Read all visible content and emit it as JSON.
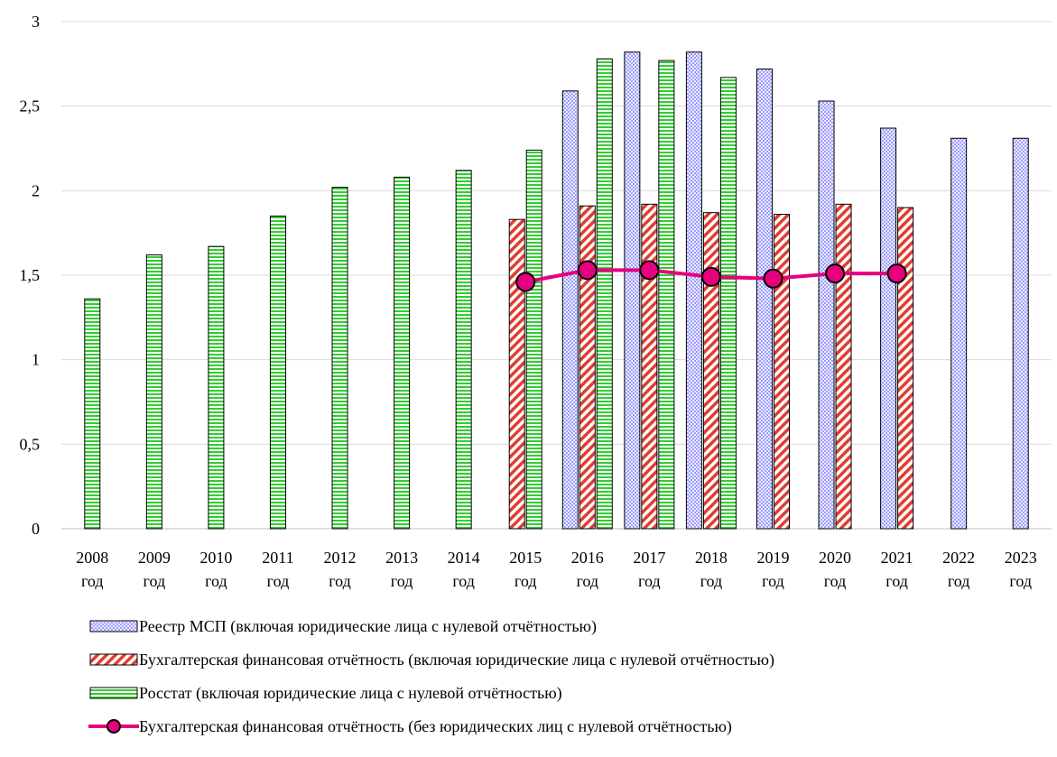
{
  "chart_data": {
    "type": "bar",
    "categories": [
      [
        "2008",
        "год"
      ],
      [
        "2009",
        "год"
      ],
      [
        "2010",
        "год"
      ],
      [
        "2011",
        "год"
      ],
      [
        "2012",
        "год"
      ],
      [
        "2013",
        "год"
      ],
      [
        "2014",
        "год"
      ],
      [
        "2015",
        "год"
      ],
      [
        "2016",
        "год"
      ],
      [
        "2017",
        "год"
      ],
      [
        "2018",
        "год"
      ],
      [
        "2019",
        "год"
      ],
      [
        "2020",
        "год"
      ],
      [
        "2021",
        "год"
      ],
      [
        "2022",
        "год"
      ],
      [
        "2023",
        "год"
      ]
    ],
    "y_ticks": [
      "0",
      "0,5",
      "1",
      "1,5",
      "2",
      "2,5",
      "3"
    ],
    "ylim": [
      0,
      3
    ],
    "grid": true,
    "legend_position": "bottom",
    "series": [
      {
        "name": "Реестр МСП (включая юридические лица с нулевой отчётностью)",
        "kind": "bar",
        "pattern": "crosshatch",
        "color": "#7f7fff",
        "values": [
          null,
          null,
          null,
          null,
          null,
          null,
          null,
          null,
          2.59,
          2.82,
          2.82,
          2.72,
          2.53,
          2.37,
          2.31,
          2.31
        ]
      },
      {
        "name": "Бухгалтерская финансовая отчётность (включая юридические лица с нулевой отчётностью)",
        "kind": "bar",
        "pattern": "diagonal-stripes",
        "color": "#e03c31",
        "values": [
          null,
          null,
          null,
          null,
          null,
          null,
          null,
          1.83,
          1.91,
          1.92,
          1.87,
          1.86,
          1.92,
          1.9,
          null,
          null
        ]
      },
      {
        "name": "Росстат (включая юридические лица с нулевой отчётностью)",
        "kind": "bar",
        "pattern": "horizontal-stripes",
        "color": "#32cd32",
        "values": [
          1.36,
          1.62,
          1.67,
          1.85,
          2.02,
          2.08,
          2.12,
          2.24,
          2.78,
          2.77,
          2.67,
          null,
          null,
          null,
          null,
          null
        ]
      },
      {
        "name": "Бухгалтерская финансовая отчётность (без юридических лиц с нулевой отчётностью)",
        "kind": "line",
        "color": "#e6007e",
        "marker_color": "#e6007e",
        "values": [
          null,
          null,
          null,
          null,
          null,
          null,
          null,
          1.46,
          1.53,
          1.53,
          1.49,
          1.48,
          1.51,
          1.51,
          null,
          null
        ]
      }
    ]
  }
}
